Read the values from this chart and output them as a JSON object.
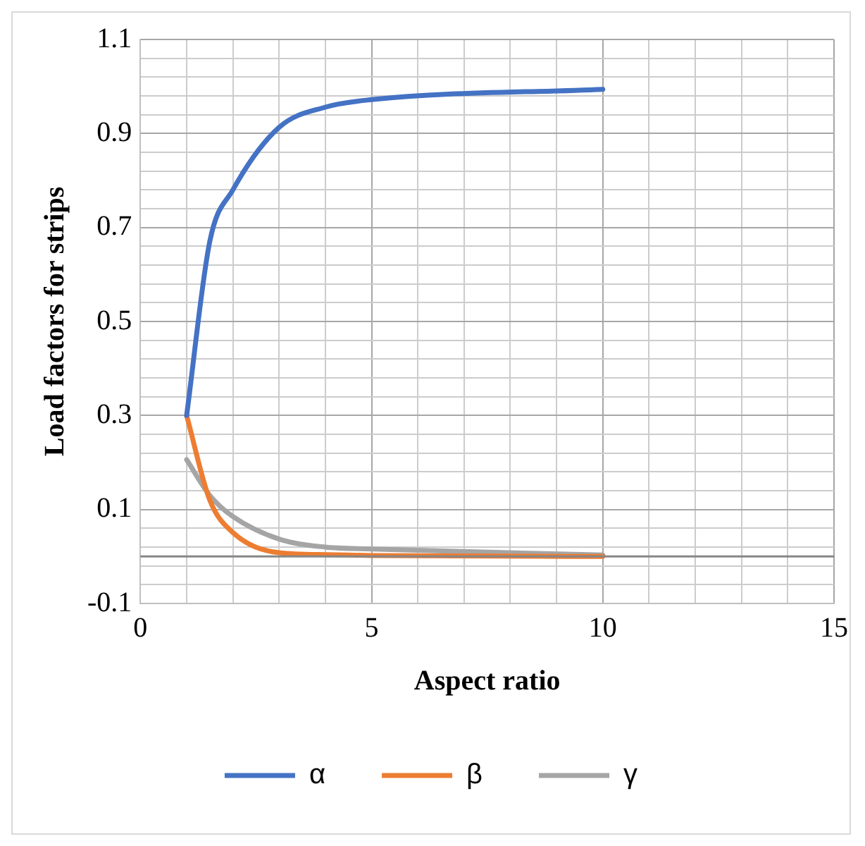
{
  "chart_data": {
    "type": "line",
    "xlabel": "Aspect ratio",
    "ylabel": "Load factors for strips",
    "x": [
      1,
      1.5,
      2,
      3,
      4,
      5,
      10
    ],
    "series": [
      {
        "name": "α",
        "color": "#4472c4",
        "values": [
          0.3,
          0.67,
          0.78,
          0.913,
          0.956,
          0.972,
          0.994
        ]
      },
      {
        "name": "β",
        "color": "#ed7d31",
        "values": [
          0.3,
          0.12,
          0.051,
          0.008,
          0.004,
          0.002,
          0
        ]
      },
      {
        "name": "γ",
        "color": "#a5a5a5",
        "values": [
          0.206,
          0.13,
          0.085,
          0.037,
          0.02,
          0.016,
          0.003
        ]
      }
    ],
    "xlim": [
      0,
      15
    ],
    "xticks": [
      0,
      {
        "value": 1,
        "label": null
      },
      {
        "value": 2,
        "label": null
      },
      {
        "value": 3,
        "label": null
      },
      {
        "value": 4,
        "label": null
      },
      5,
      {
        "value": 6,
        "label": null
      },
      {
        "value": 7,
        "label": null
      },
      {
        "value": 8,
        "label": null
      },
      {
        "value": 9,
        "label": null
      },
      10,
      {
        "value": 11,
        "label": null
      },
      {
        "value": 12,
        "label": null
      },
      {
        "value": 13,
        "label": null
      },
      {
        "value": 14,
        "label": null
      },
      15
    ],
    "ylim": [
      -0.1,
      1.1
    ],
    "yticks": [
      -0.1,
      {
        "value": -0.06,
        "label": null
      },
      {
        "value": -0.02,
        "label": null
      },
      {
        "value": 0.02,
        "label": null
      },
      {
        "value": 0.06,
        "label": null
      },
      0.1,
      {
        "value": 0.14,
        "label": null
      },
      {
        "value": 0.18,
        "label": null
      },
      {
        "value": 0.22,
        "label": null
      },
      {
        "value": 0.26,
        "label": null
      },
      0.3,
      {
        "value": 0.34,
        "label": null
      },
      {
        "value": 0.38,
        "label": null
      },
      {
        "value": 0.42,
        "label": null
      },
      {
        "value": 0.46,
        "label": null
      },
      0.5,
      {
        "value": 0.54,
        "label": null
      },
      {
        "value": 0.58,
        "label": null
      },
      {
        "value": 0.62,
        "label": null
      },
      {
        "value": 0.66,
        "label": null
      },
      0.7,
      {
        "value": 0.74,
        "label": null
      },
      {
        "value": 0.78,
        "label": null
      },
      {
        "value": 0.82,
        "label": null
      },
      {
        "value": 0.86,
        "label": null
      },
      0.9,
      {
        "value": 0.94,
        "label": null
      },
      {
        "value": 0.98,
        "label": null
      },
      {
        "value": 1.02,
        "label": null
      },
      {
        "value": 1.06,
        "label": null
      },
      1.1
    ],
    "ref_lines": [
      {
        "axis": "y",
        "value": 0,
        "label": null,
        "color": "#868686"
      }
    ],
    "grid": true,
    "legend": "bottom",
    "marker": "none",
    "line_style": "solid"
  }
}
